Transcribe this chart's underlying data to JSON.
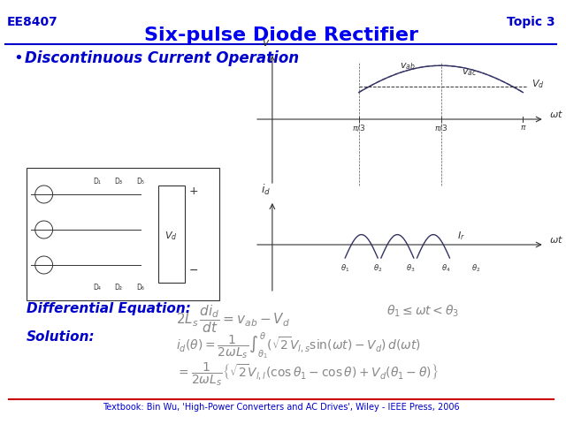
{
  "title": "Six-pulse Diode Rectifier",
  "top_left": "EE8407",
  "top_right": "Topic 3",
  "bullet": "Discontinuous Current Operation",
  "diff_eq_label": "Differential Equation:",
  "solution_label": "Solution:",
  "diff_eq": "2L_s \\frac{di_d}{dt} = v_{ab} - V_d \\qquad \\theta_1 \\leq \\omega t < \\theta_3",
  "solution1": "i_d(\\theta) = \\frac{1}{2\\omega L_s} \\int_{\\theta_1}^{\\theta} (\\sqrt{2}V_{l,l} \\sin(\\omega t) - V_d)\\, d(\\omega t)",
  "solution2": "= \\frac{1}{2\\omega L_s} \\left\\{ \\sqrt{2}V_{l,l}(\\cos\\theta_1 - \\cos\\theta) + V_d(\\theta_1 - \\theta) \\right\\}",
  "footnote": "Textbook: Bin Wu, 'High-Power Converters and AC Drives', Wiley - IEEE Press, 2006",
  "blue": "#0000CC",
  "dark_blue": "#0000AA",
  "title_color": "#0000EE",
  "bg_color": "#FFFFFF",
  "red_line_color": "#CC0000",
  "graph_line_color": "#000080"
}
